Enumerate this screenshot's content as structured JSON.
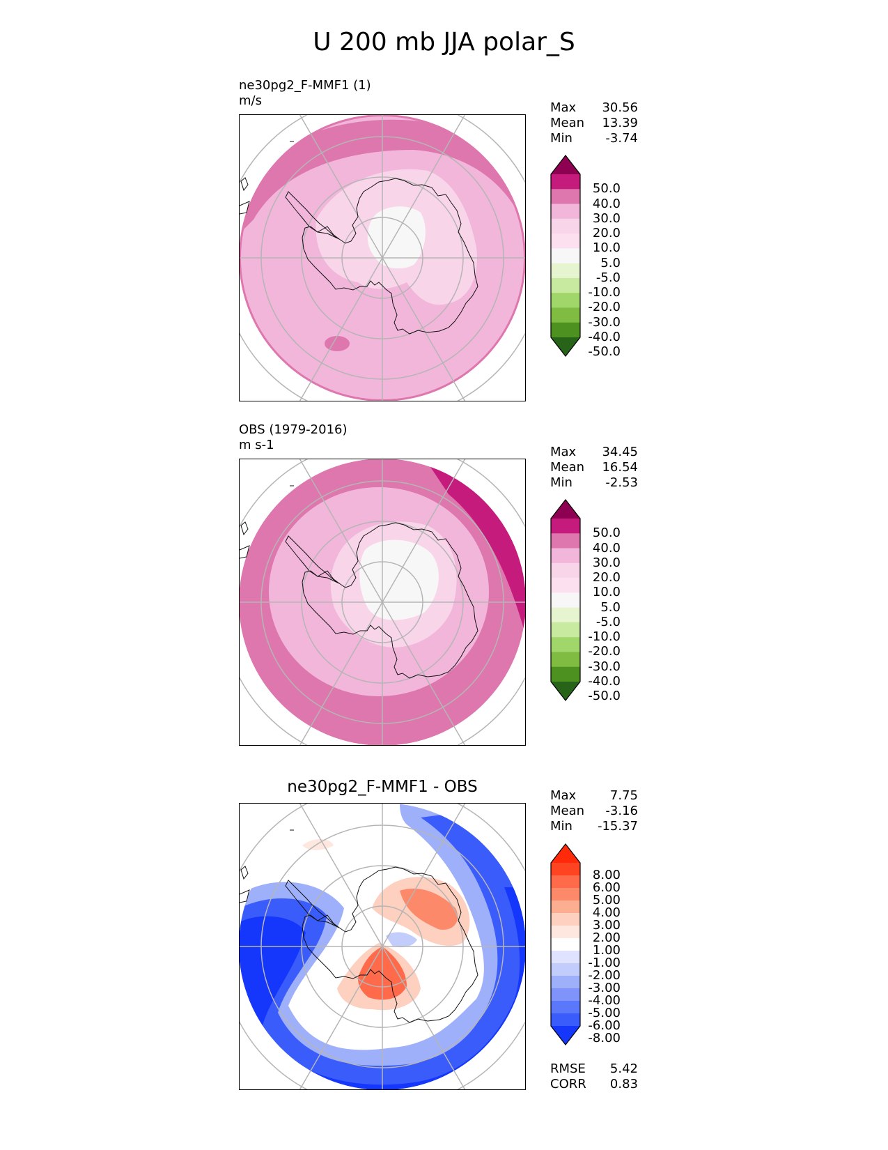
{
  "title": "U 200 mb JJA polar_S",
  "panels": [
    {
      "id": "test",
      "name": "ne30pg2_F-MMF1 (1)",
      "units": "m/s",
      "stats": [
        {
          "label": "Max",
          "value": "30.56"
        },
        {
          "label": "Mean",
          "value": "13.39"
        },
        {
          "label": "Min",
          "value": "-3.74"
        }
      ],
      "colorbar": {
        "ticks": [
          "50.0",
          "40.0",
          "30.0",
          "20.0",
          "10.0",
          "5.0",
          "-5.0",
          "-10.0",
          "-20.0",
          "-30.0",
          "-40.0",
          "-50.0"
        ],
        "colors": [
          "#8e0152",
          "#c51b7d",
          "#de77ae",
          "#f1b6da",
          "#f9d5ea",
          "#fde0ef",
          "#f7f7f7",
          "#e6f5d0",
          "#c7e9a0",
          "#a1d76a",
          "#7fbc41",
          "#4d9221",
          "#276419"
        ]
      }
    },
    {
      "id": "ref",
      "name": "OBS (1979-2016)",
      "units": "m s-1",
      "stats": [
        {
          "label": "Max",
          "value": "34.45"
        },
        {
          "label": "Mean",
          "value": "16.54"
        },
        {
          "label": "Min",
          "value": "-2.53"
        }
      ],
      "colorbar": {
        "ticks": [
          "50.0",
          "40.0",
          "30.0",
          "20.0",
          "10.0",
          "5.0",
          "-5.0",
          "-10.0",
          "-20.0",
          "-30.0",
          "-40.0",
          "-50.0"
        ],
        "colors": [
          "#8e0152",
          "#c51b7d",
          "#de77ae",
          "#f1b6da",
          "#f9d5ea",
          "#fde0ef",
          "#f7f7f7",
          "#e6f5d0",
          "#c7e9a0",
          "#a1d76a",
          "#7fbc41",
          "#4d9221",
          "#276419"
        ]
      }
    },
    {
      "id": "diff",
      "name": "ne30pg2_F-MMF1 - OBS",
      "stats": [
        {
          "label": "Max",
          "value": "7.75"
        },
        {
          "label": "Mean",
          "value": "-3.16"
        },
        {
          "label": "Min",
          "value": "-15.37"
        }
      ],
      "colorbar": {
        "ticks": [
          "8.00",
          "6.00",
          "5.00",
          "4.00",
          "3.00",
          "2.00",
          "1.00",
          "-1.00",
          "-2.00",
          "-3.00",
          "-4.00",
          "-5.00",
          "-6.00",
          "-8.00"
        ],
        "colors": [
          "#ff2a0a",
          "#ff4422",
          "#fe6a4a",
          "#fc8a6a",
          "#fcae91",
          "#fdd0c0",
          "#fde7df",
          "#ffffff",
          "#dfe3ff",
          "#c3cdfc",
          "#9fb0fb",
          "#7f93fa",
          "#5b78fa",
          "#3a5cfb",
          "#1537fc"
        ]
      },
      "metrics": [
        {
          "label": "RMSE",
          "value": "5.42"
        },
        {
          "label": "CORR",
          "value": "0.83"
        }
      ]
    }
  ]
}
